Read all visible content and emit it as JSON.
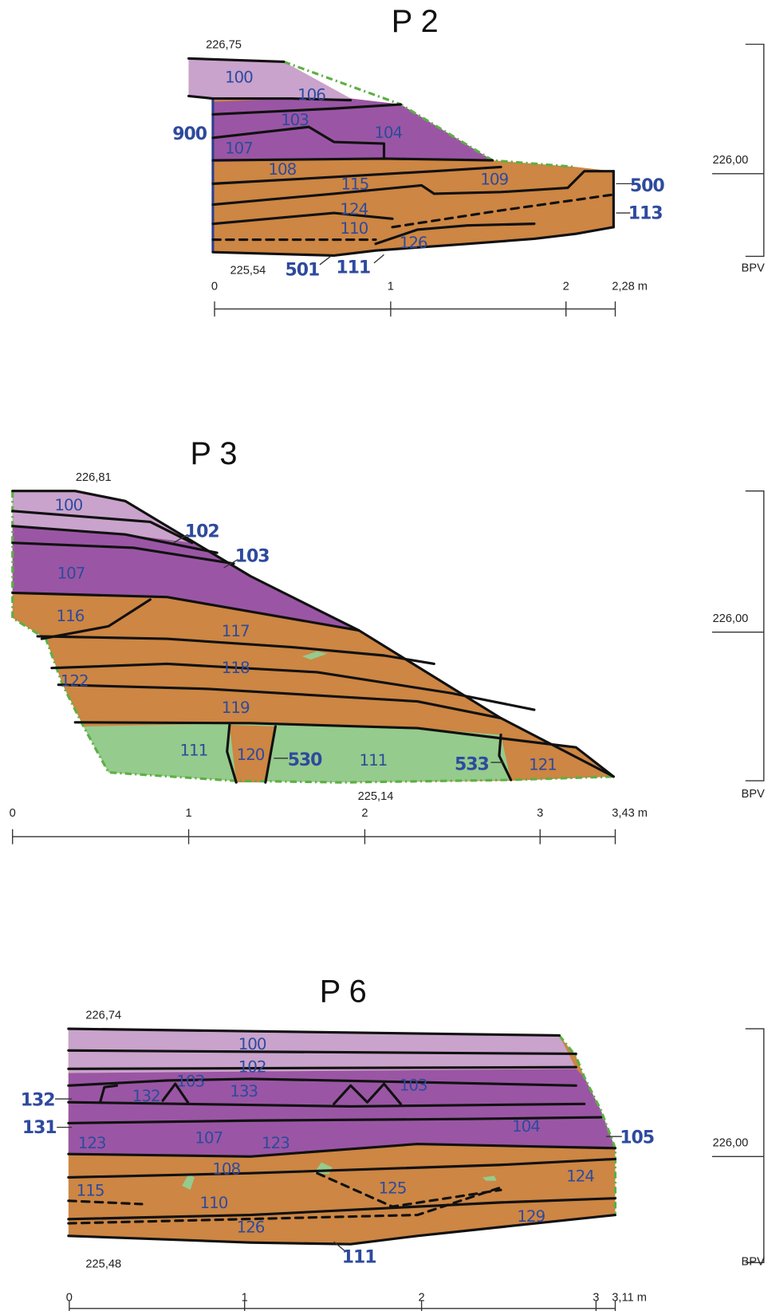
{
  "sections": [
    {
      "title": "P 2",
      "top_elevation": "226,75",
      "bottom_elevation": "225,54",
      "layers": [
        "100",
        "106",
        "103",
        "104",
        "900",
        "107",
        "108",
        "115",
        "109",
        "124",
        "110",
        "126",
        "500",
        "113",
        "501",
        "111"
      ],
      "scale_labels": [
        "0",
        "1",
        "2",
        "2,28 m"
      ],
      "reference": {
        "level": "226,00",
        "datum": "BPV"
      }
    },
    {
      "title": "P 3",
      "top_elevation": "226,81",
      "bottom_elevation": "225,14",
      "layers": [
        "100",
        "102",
        "103",
        "107",
        "116",
        "117",
        "118",
        "122",
        "119",
        "111",
        "120",
        "530",
        "111",
        "533",
        "121"
      ],
      "scale_labels": [
        "0",
        "1",
        "2",
        "3",
        "3,43 m"
      ],
      "reference": {
        "level": "226,00",
        "datum": "BPV"
      }
    },
    {
      "title": "P 6",
      "top_elevation": "226,74",
      "bottom_elevation": "225,48",
      "layers": [
        "100",
        "102",
        "103",
        "133",
        "132",
        "103",
        "132",
        "131",
        "104",
        "123",
        "107",
        "123",
        "105",
        "108",
        "124",
        "115",
        "125",
        "110",
        "129",
        "126",
        "111"
      ],
      "scale_labels": [
        "0",
        "1",
        "2",
        "3",
        "3,11 m"
      ],
      "reference": {
        "level": "226,00",
        "datum": "BPV"
      }
    }
  ]
}
